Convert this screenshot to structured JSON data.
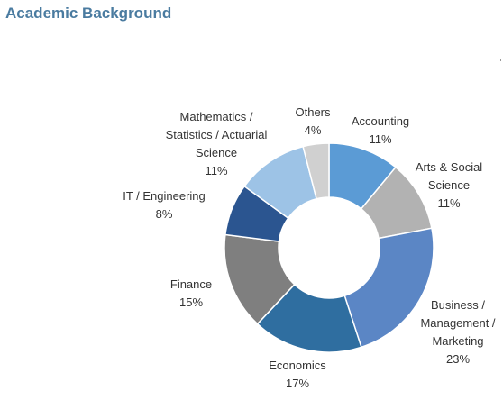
{
  "chart_data": {
    "type": "pie",
    "title": "Academic Background",
    "donut": true,
    "slices": [
      {
        "label_lines": [
          "Accounting"
        ],
        "value": 11,
        "value_text": "11%",
        "color": "#5b9bd5"
      },
      {
        "label_lines": [
          "Arts & Social",
          "Science"
        ],
        "value": 11,
        "value_text": "11%",
        "color": "#b2b2b2"
      },
      {
        "label_lines": [
          "Business /",
          "Management /",
          "Marketing"
        ],
        "value": 23,
        "value_text": "23%",
        "color": "#5b86c5"
      },
      {
        "label_lines": [
          "Economics"
        ],
        "value": 17,
        "value_text": "17%",
        "color": "#2f6ea0"
      },
      {
        "label_lines": [
          "Finance"
        ],
        "value": 15,
        "value_text": "15%",
        "color": "#7f7f7f"
      },
      {
        "label_lines": [
          "IT / Engineering"
        ],
        "value": 8,
        "value_text": "8%",
        "color": "#2b5590"
      },
      {
        "label_lines": [
          "Mathematics /",
          "Statistics / Actuarial",
          "Science"
        ],
        "value": 11,
        "value_text": "11%",
        "color": "#9dc3e6"
      },
      {
        "label_lines": [
          "Others"
        ],
        "value": 4,
        "value_text": "4%",
        "color": "#d0d0d0"
      }
    ]
  }
}
